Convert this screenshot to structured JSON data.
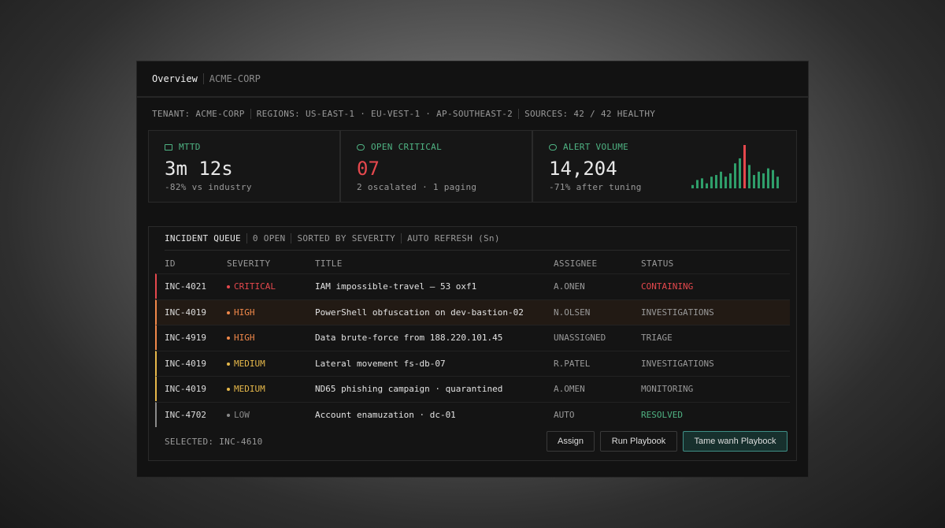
{
  "header": {
    "title": "Overview",
    "tenant": "ACME-CORP"
  },
  "meta": [
    "TENANT: ACME-CORP",
    "REGIONS: US-EAST-1 · EU-VEST-1 · AP-SOUTHEAST-2",
    "SOURCES: 42 / 42 HEALTHY"
  ],
  "metrics": [
    {
      "label": "MTTD",
      "value": "3m 12s",
      "note": "-82% vs industry",
      "color": "#e8e8e8",
      "label_color": "#4fb383"
    },
    {
      "label": "OPEN CRITICAL",
      "value": "07",
      "note": "2 oscalated · 1 paging",
      "color": "#e5484d",
      "label_color": "#4fb383"
    },
    {
      "label": "ALERT VOLUME",
      "value": "14,204",
      "note": "-71% after tuning",
      "color": "#e8e8e8",
      "label_color": "#4fb383",
      "sparkline": {
        "values": [
          4,
          10,
          12,
          6,
          14,
          16,
          20,
          14,
          18,
          30,
          36,
          52,
          28,
          16,
          20,
          18,
          24,
          22,
          14
        ],
        "color": "#2f9e6a",
        "highlight_index": 11,
        "highlight_color": "#e5484d"
      }
    }
  ],
  "queue": {
    "title": "INCIDENT QUEUE",
    "tags": [
      "0 OPEN",
      "SORTED BY SEVERITY",
      "AUTO REFRESH (Sn)"
    ],
    "columns": [
      "ID",
      "SEVERITY",
      "TITLE",
      "ASSIGNEE",
      "STATUS"
    ],
    "rows": [
      {
        "id": "INC-4021",
        "severity": "CRITICAL",
        "title": "IAM impossible-travel — 53 oxf1",
        "assignee": "A.ONEN",
        "status": "CONTAINING",
        "severity_color": "#e5484d",
        "status_color": "#e5484d",
        "highlighted": false
      },
      {
        "id": "INC-4019",
        "severity": "HIGH",
        "title": "PowerShell obfuscation on dev-bastion-02",
        "assignee": "N.OLSEN",
        "status": "INVESTIGATIONS",
        "severity_color": "#f0884a",
        "status_color": "#9a9a9a",
        "highlighted": true
      },
      {
        "id": "INC-4919",
        "severity": "HIGH",
        "title": "Data brute-force from 188.220.101.45",
        "assignee": "UNASSIGNED",
        "status": "TRIAGE",
        "severity_color": "#f0884a",
        "status_color": "#9a9a9a",
        "highlighted": false
      },
      {
        "id": "INC-4019",
        "severity": "MEDIUM",
        "title": "Lateral movement fs-db-07",
        "assignee": "R.PATEL",
        "status": "INVESTIGATIONS",
        "severity_color": "#e6b84a",
        "status_color": "#9a9a9a",
        "highlighted": false
      },
      {
        "id": "INC-4019",
        "severity": "MEDIUM",
        "title": "ND65 phishing campaign · quarantined",
        "assignee": "A.OMEN",
        "status": "MONITORING",
        "severity_color": "#e6b84a",
        "status_color": "#9a9a9a",
        "highlighted": false
      },
      {
        "id": "INC-4702",
        "severity": "LOW",
        "title": "Account enamuzation · dc-01",
        "assignee": "AUTO",
        "status": "RESOLVED",
        "severity_color": "#8a8a8a",
        "status_color": "#4fb383",
        "highlighted": false
      }
    ],
    "selected": "SELECTED: INC-4610",
    "actions": [
      "Assign",
      "Run Playbook",
      "Tame wanh Playbock"
    ]
  }
}
